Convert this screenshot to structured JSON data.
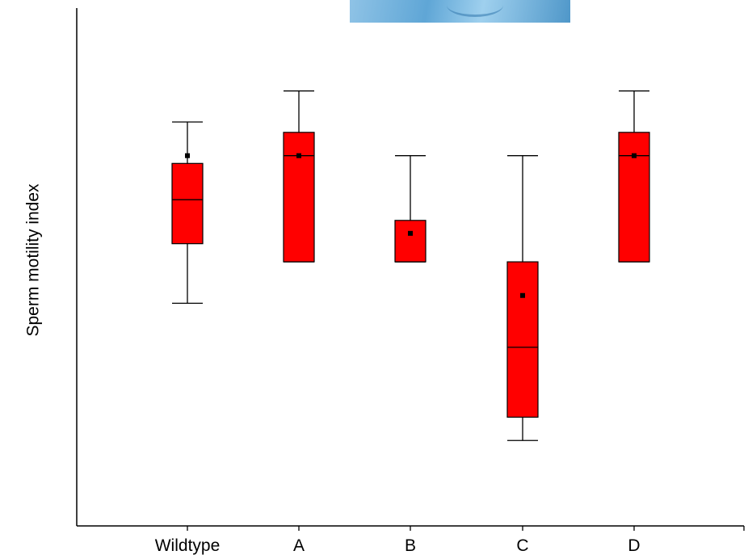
{
  "chart_data": {
    "type": "box",
    "title": "",
    "xlabel": "",
    "ylabel": "Sperm motility index",
    "categories": [
      "Wildtype",
      "A",
      "B",
      "C",
      "D"
    ],
    "ylim": [
      0,
      100
    ],
    "y_tick_labels_shown": false,
    "grid": false,
    "legend": "none",
    "box_color": "#ff0000",
    "series": [
      {
        "category": "Wildtype",
        "whisker_low": 43,
        "q1": 54.5,
        "median": 63,
        "q3": 70,
        "whisker_high": 78,
        "mean": 71.5
      },
      {
        "category": "A",
        "whisker_low": 51,
        "q1": 51,
        "median": 71.5,
        "q3": 76,
        "whisker_high": 84,
        "mean": 71.5
      },
      {
        "category": "B",
        "whisker_low": 51,
        "q1": 51,
        "median": 51,
        "q3": 59,
        "whisker_high": 71.5,
        "mean": 56.5
      },
      {
        "category": "C",
        "whisker_low": 16.5,
        "q1": 21,
        "median": 34.5,
        "q3": 51,
        "whisker_high": 71.5,
        "mean": 44.5
      },
      {
        "category": "D",
        "whisker_low": 51,
        "q1": 51,
        "median": 71.5,
        "q3": 76,
        "whisker_high": 84,
        "mean": 71.5
      }
    ]
  }
}
